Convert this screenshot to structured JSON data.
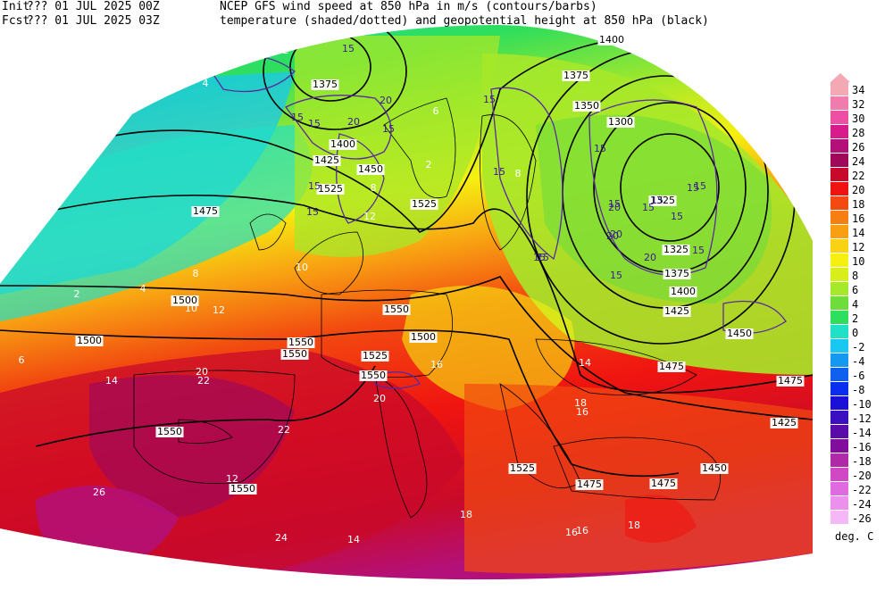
{
  "header": {
    "init_label": "Init",
    "init_time": "??? 01 JUL 2025 00Z",
    "fcst_label": "Fcst",
    "fcst_time": "??? 01 JUL 2025 03Z",
    "title_line1": "NCEP GFS wind speed at 850 hPa in m/s (contours/barbs)",
    "title_line2": "temperature (shaded/dotted) and geopotential height at 850 hPa (black)"
  },
  "colorbar": {
    "unit": "deg. C",
    "entries": [
      {
        "label": "34",
        "color": "#f4a8b4"
      },
      {
        "label": "32",
        "color": "#f07cae"
      },
      {
        "label": "30",
        "color": "#ec4fa4"
      },
      {
        "label": "28",
        "color": "#d81b8c"
      },
      {
        "label": "26",
        "color": "#b4107a"
      },
      {
        "label": "24",
        "color": "#a0085a"
      },
      {
        "label": "22",
        "color": "#c80a2a"
      },
      {
        "label": "20",
        "color": "#f01410"
      },
      {
        "label": "18",
        "color": "#f24a10"
      },
      {
        "label": "16",
        "color": "#f67e12"
      },
      {
        "label": "14",
        "color": "#f8a012"
      },
      {
        "label": "12",
        "color": "#fad214"
      },
      {
        "label": "10",
        "color": "#f6f010"
      },
      {
        "label": "8",
        "color": "#d8ee1a"
      },
      {
        "label": "6",
        "color": "#a6e82a"
      },
      {
        "label": "4",
        "color": "#6edc3a"
      },
      {
        "label": "2",
        "color": "#2ede5c"
      },
      {
        "label": "0",
        "color": "#20e0c8"
      },
      {
        "label": "-2",
        "color": "#18c8f0"
      },
      {
        "label": "-4",
        "color": "#1498f0"
      },
      {
        "label": "-6",
        "color": "#1060f0"
      },
      {
        "label": "-8",
        "color": "#0a2ef0"
      },
      {
        "label": "-10",
        "color": "#1a10d8"
      },
      {
        "label": "-12",
        "color": "#3a10c0"
      },
      {
        "label": "-14",
        "color": "#5a0ca8"
      },
      {
        "label": "-16",
        "color": "#820c9c"
      },
      {
        "label": "-18",
        "color": "#b02aa8"
      },
      {
        "label": "-20",
        "color": "#d048c4"
      },
      {
        "label": "-22",
        "color": "#e06ae0"
      },
      {
        "label": "-24",
        "color": "#ec90ee"
      },
      {
        "label": "-26",
        "color": "#f4b8f6"
      }
    ]
  },
  "height_labels": [
    "1400",
    "1375",
    "1350",
    "1325",
    "1300",
    "1375",
    "1325",
    "1400",
    "1425",
    "1450",
    "1475",
    "1475",
    "1500",
    "1525",
    "1525",
    "1475",
    "1500",
    "1525",
    "1550",
    "1550",
    "1550",
    "1550",
    "1550",
    "1550",
    "1525",
    "1500",
    "1475",
    "1475",
    "1425",
    "1450",
    "1375",
    "1400",
    "1425",
    "1450"
  ],
  "wind_labels": [
    "15",
    "15",
    "15",
    "20",
    "15",
    "20",
    "15",
    "15",
    "15",
    "15",
    "15",
    "20",
    "15",
    "20",
    "15",
    "15",
    "15",
    "20",
    "15",
    "15",
    "15",
    "15",
    "20",
    "15",
    "15"
  ],
  "temp_labels": [
    "2",
    "6",
    "8",
    "10",
    "12",
    "14",
    "16",
    "18",
    "20",
    "22",
    "24",
    "26",
    "8",
    "4",
    "2",
    "10",
    "12",
    "14",
    "16",
    "18",
    "20",
    "22",
    "16",
    "8",
    "6",
    "4",
    "2",
    "12",
    "14",
    "16",
    "18"
  ]
}
